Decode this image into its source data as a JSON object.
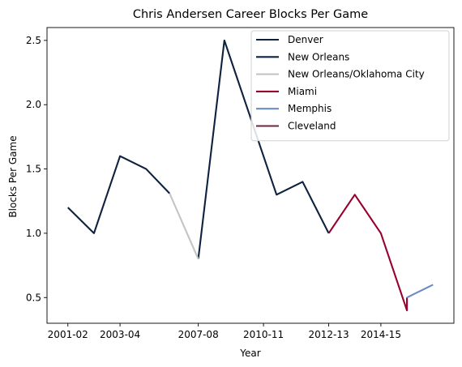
{
  "chart_data": {
    "type": "line",
    "title": "Chris Andersen Career Blocks Per Game",
    "xlabel": "Year",
    "ylabel": "Blocks Per Game",
    "x_tick_labels": [
      "2001-02",
      "2003-04",
      "2007-08",
      "2010-11",
      "2012-13",
      "2014-15"
    ],
    "x_tick_positions": [
      0,
      2,
      5,
      7.5,
      10,
      12
    ],
    "y_ticks": [
      0.5,
      1.0,
      1.5,
      2.0,
      2.5
    ],
    "y_tick_labels": [
      "0.5",
      "1.0",
      "1.5",
      "2.0",
      "2.5"
    ],
    "xlim": [
      -0.8,
      14.8
    ],
    "ylim": [
      0.3,
      2.6
    ],
    "grid": false,
    "legend_position": "top-right",
    "series": [
      {
        "name": "Denver",
        "color": "#0e2240",
        "points": [
          [
            0,
            1.2
          ],
          [
            1,
            1.0
          ],
          [
            2,
            1.6
          ],
          [
            3,
            1.5
          ],
          [
            3.9,
            1.31
          ]
        ]
      },
      {
        "name": "New Orleans",
        "color": "#0e2240",
        "points": [
          [
            5,
            0.8
          ],
          [
            6,
            2.5
          ],
          [
            7,
            1.9
          ],
          [
            8,
            1.3
          ],
          [
            9,
            1.4
          ],
          [
            10,
            1.0
          ]
        ]
      },
      {
        "name": "New Orleans/Oklahoma City",
        "color": "#c4c4c4",
        "points": [
          [
            3.9,
            1.31
          ],
          [
            5,
            0.8
          ]
        ]
      },
      {
        "name": "Miami",
        "color": "#98002e",
        "points": [
          [
            10,
            1.0
          ],
          [
            11,
            1.3
          ],
          [
            12,
            1.0
          ],
          [
            13,
            0.4
          ],
          [
            13,
            0.5
          ]
        ]
      },
      {
        "name": "Memphis",
        "color": "#6b8cc5",
        "points": [
          [
            13,
            0.5
          ],
          [
            14,
            0.6
          ]
        ]
      },
      {
        "name": "Cleveland",
        "color": "#6f263d",
        "points": []
      }
    ]
  }
}
